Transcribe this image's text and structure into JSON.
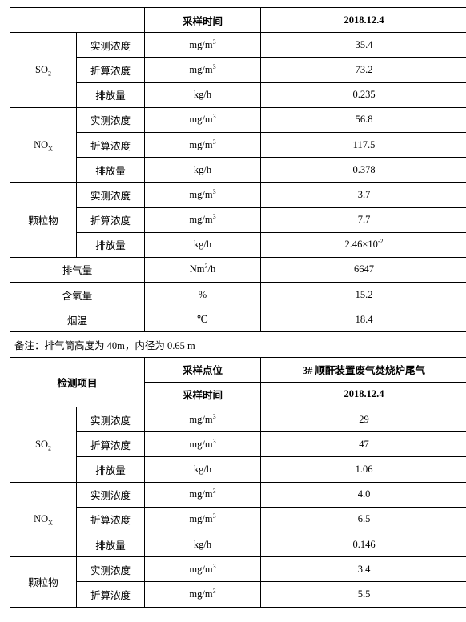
{
  "table1": {
    "time_label": "采样时间",
    "date": "2018.12.4",
    "groups": [
      {
        "name": "SO",
        "sub": "2",
        "rows": [
          {
            "metric": "实测浓度",
            "unit": "mg/m",
            "sup": "3",
            "value": "35.4"
          },
          {
            "metric": "折算浓度",
            "unit": "mg/m",
            "sup": "3",
            "value": "73.2"
          },
          {
            "metric": "排放量",
            "unit": "kg/h",
            "sup": "",
            "value": "0.235"
          }
        ]
      },
      {
        "name": "NO",
        "sub": "X",
        "rows": [
          {
            "metric": "实测浓度",
            "unit": "mg/m",
            "sup": "3",
            "value": "56.8"
          },
          {
            "metric": "折算浓度",
            "unit": "mg/m",
            "sup": "3",
            "value": "117.5"
          },
          {
            "metric": "排放量",
            "unit": "kg/h",
            "sup": "",
            "value": "0.378"
          }
        ]
      },
      {
        "name": "颗粒物",
        "sub": "",
        "rows": [
          {
            "metric": "实测浓度",
            "unit": "mg/m",
            "sup": "3",
            "value": "3.7"
          },
          {
            "metric": "折算浓度",
            "unit": "mg/m",
            "sup": "3",
            "value": "7.7"
          },
          {
            "metric": "排放量",
            "unit": "kg/h",
            "sup": "",
            "value": "2.46×10",
            "value_sup": "-2"
          }
        ]
      }
    ],
    "singles": [
      {
        "metric": "排气量",
        "unit": "Nm",
        "unit_sup": "3",
        "unit_tail": "/h",
        "value": "6647"
      },
      {
        "metric": "含氧量",
        "unit": "%",
        "unit_sup": "",
        "unit_tail": "",
        "value": "15.2"
      },
      {
        "metric": "烟温",
        "unit": "℃",
        "unit_sup": "",
        "unit_tail": "",
        "value": "18.4"
      }
    ],
    "note": "备注：排气筒高度为 40m，内径为 0.65 m"
  },
  "table2": {
    "item_label": "检测项目",
    "point_label": "采样点位",
    "point_value": "3# 顺酐装置废气焚烧炉尾气",
    "time_label": "采样时间",
    "date": "2018.12.4",
    "groups": [
      {
        "name": "SO",
        "sub": "2",
        "rows": [
          {
            "metric": "实测浓度",
            "unit": "mg/m",
            "sup": "3",
            "value": "29"
          },
          {
            "metric": "折算浓度",
            "unit": "mg/m",
            "sup": "3",
            "value": "47"
          },
          {
            "metric": "排放量",
            "unit": "kg/h",
            "sup": "",
            "value": "1.06"
          }
        ]
      },
      {
        "name": "NO",
        "sub": "X",
        "rows": [
          {
            "metric": "实测浓度",
            "unit": "mg/m",
            "sup": "3",
            "value": "4.0"
          },
          {
            "metric": "折算浓度",
            "unit": "mg/m",
            "sup": "3",
            "value": "6.5"
          },
          {
            "metric": "排放量",
            "unit": "kg/h",
            "sup": "",
            "value": "0.146"
          }
        ]
      },
      {
        "name": "颗粒物",
        "sub": "",
        "rows": [
          {
            "metric": "实测浓度",
            "unit": "mg/m",
            "sup": "3",
            "value": "3.4"
          },
          {
            "metric": "折算浓度",
            "unit": "mg/m",
            "sup": "3",
            "value": "5.5"
          }
        ]
      }
    ]
  }
}
